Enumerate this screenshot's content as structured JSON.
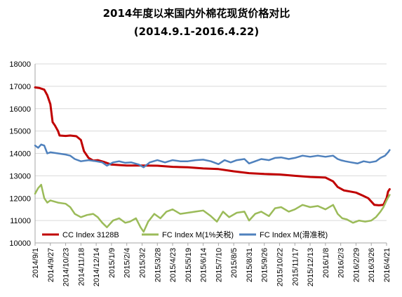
{
  "chart_data": {
    "type": "line",
    "title": "2014年度以来国内外棉花现货价格对比",
    "subtitle": "(2014.9.1-2016.4.22)",
    "xlabel": "",
    "ylabel": "",
    "ylim": [
      10000,
      18000
    ],
    "yticks": [
      10000,
      11000,
      12000,
      13000,
      14000,
      15000,
      16000,
      17000,
      18000
    ],
    "x_tick_labels": [
      "2014/9/1",
      "2014/9/27",
      "2014/10/23",
      "2014/11/18",
      "2014/12/14",
      "2015/1/9",
      "2015/2/4",
      "2015/3/2",
      "2015/3/28",
      "2015/4/23",
      "2015/5/19",
      "2015/6/14",
      "2015/7/10",
      "2015/8/5",
      "2015/8/31",
      "2015/9/26",
      "2015/10/22",
      "2015/11/17",
      "2015/12/13",
      "2016/1/8",
      "2016/2/3",
      "2016/2/29",
      "2016/3/26",
      "2016/4/21"
    ],
    "grid": "horizontal",
    "legend_position": "bottom",
    "series": [
      {
        "name": "CC Index 3128B",
        "color": "#c00000",
        "points": [
          [
            0,
            16950
          ],
          [
            0.3,
            16920
          ],
          [
            0.6,
            16850
          ],
          [
            0.8,
            16600
          ],
          [
            1.0,
            16200
          ],
          [
            1.15,
            15400
          ],
          [
            1.3,
            15250
          ],
          [
            1.5,
            15000
          ],
          [
            1.6,
            14800
          ],
          [
            2.0,
            14780
          ],
          [
            2.3,
            14800
          ],
          [
            2.7,
            14770
          ],
          [
            3.0,
            14600
          ],
          [
            3.2,
            14100
          ],
          [
            3.5,
            13800
          ],
          [
            3.8,
            13680
          ],
          [
            4.1,
            13700
          ],
          [
            4.5,
            13620
          ],
          [
            5.0,
            13500
          ],
          [
            6.0,
            13460
          ],
          [
            7.0,
            13460
          ],
          [
            8.0,
            13450
          ],
          [
            9.0,
            13400
          ],
          [
            10.0,
            13380
          ],
          [
            11.0,
            13330
          ],
          [
            12.0,
            13300
          ],
          [
            13.0,
            13200
          ],
          [
            14.0,
            13120
          ],
          [
            15.0,
            13080
          ],
          [
            16.0,
            13060
          ],
          [
            17.0,
            13000
          ],
          [
            18.0,
            12950
          ],
          [
            19.0,
            12920
          ],
          [
            19.5,
            12750
          ],
          [
            19.8,
            12500
          ],
          [
            20.2,
            12350
          ],
          [
            20.6,
            12300
          ],
          [
            21.0,
            12250
          ],
          [
            21.4,
            12130
          ],
          [
            21.8,
            12000
          ],
          [
            22.0,
            11850
          ],
          [
            22.2,
            11700
          ],
          [
            22.5,
            11680
          ],
          [
            22.8,
            11700
          ],
          [
            23.0,
            12000
          ],
          [
            23.1,
            12300
          ],
          [
            23.2,
            12400
          ]
        ]
      },
      {
        "name": "FC Index M(1%关税)",
        "color": "#9bbb59",
        "points": [
          [
            0,
            12200
          ],
          [
            0.2,
            12450
          ],
          [
            0.4,
            12600
          ],
          [
            0.6,
            12000
          ],
          [
            0.8,
            11800
          ],
          [
            1.0,
            11900
          ],
          [
            1.5,
            11800
          ],
          [
            2.0,
            11750
          ],
          [
            2.3,
            11600
          ],
          [
            2.6,
            11300
          ],
          [
            3.0,
            11150
          ],
          [
            3.4,
            11250
          ],
          [
            3.8,
            11300
          ],
          [
            4.1,
            11150
          ],
          [
            4.4,
            10900
          ],
          [
            4.7,
            10700
          ],
          [
            5.1,
            11000
          ],
          [
            5.5,
            11100
          ],
          [
            5.9,
            10900
          ],
          [
            6.2,
            10950
          ],
          [
            6.6,
            11100
          ],
          [
            6.9,
            10700
          ],
          [
            7.1,
            10500
          ],
          [
            7.4,
            10950
          ],
          [
            7.8,
            11300
          ],
          [
            8.2,
            11100
          ],
          [
            8.6,
            11400
          ],
          [
            9.0,
            11500
          ],
          [
            9.5,
            11300
          ],
          [
            10.0,
            11350
          ],
          [
            10.5,
            11400
          ],
          [
            11.0,
            11450
          ],
          [
            11.5,
            11200
          ],
          [
            11.9,
            10950
          ],
          [
            12.3,
            11400
          ],
          [
            12.7,
            11150
          ],
          [
            13.2,
            11350
          ],
          [
            13.7,
            11400
          ],
          [
            14.0,
            11000
          ],
          [
            14.4,
            11300
          ],
          [
            14.8,
            11400
          ],
          [
            15.3,
            11200
          ],
          [
            15.7,
            11550
          ],
          [
            16.1,
            11600
          ],
          [
            16.6,
            11400
          ],
          [
            17.0,
            11500
          ],
          [
            17.5,
            11700
          ],
          [
            18.0,
            11600
          ],
          [
            18.5,
            11650
          ],
          [
            19.0,
            11500
          ],
          [
            19.5,
            11700
          ],
          [
            19.8,
            11300
          ],
          [
            20.1,
            11100
          ],
          [
            20.4,
            11050
          ],
          [
            20.8,
            10900
          ],
          [
            21.2,
            11000
          ],
          [
            21.6,
            10950
          ],
          [
            22.0,
            11000
          ],
          [
            22.3,
            11150
          ],
          [
            22.6,
            11400
          ],
          [
            22.8,
            11600
          ],
          [
            23.0,
            11900
          ],
          [
            23.2,
            12150
          ]
        ]
      },
      {
        "name": "FC Index M(滑准税)",
        "color": "#4f81bd",
        "points": [
          [
            0,
            14350
          ],
          [
            0.2,
            14250
          ],
          [
            0.4,
            14400
          ],
          [
            0.6,
            14350
          ],
          [
            0.8,
            14000
          ],
          [
            1.0,
            14050
          ],
          [
            1.5,
            14000
          ],
          [
            2.0,
            13950
          ],
          [
            2.3,
            13900
          ],
          [
            2.6,
            13750
          ],
          [
            3.0,
            13650
          ],
          [
            3.5,
            13700
          ],
          [
            4.0,
            13650
          ],
          [
            4.4,
            13600
          ],
          [
            4.7,
            13450
          ],
          [
            5.1,
            13600
          ],
          [
            5.5,
            13650
          ],
          [
            5.9,
            13580
          ],
          [
            6.3,
            13600
          ],
          [
            6.8,
            13500
          ],
          [
            7.1,
            13380
          ],
          [
            7.5,
            13600
          ],
          [
            8.0,
            13700
          ],
          [
            8.5,
            13600
          ],
          [
            9.0,
            13700
          ],
          [
            9.5,
            13650
          ],
          [
            10.0,
            13650
          ],
          [
            10.5,
            13700
          ],
          [
            11.0,
            13720
          ],
          [
            11.5,
            13650
          ],
          [
            12.0,
            13520
          ],
          [
            12.4,
            13700
          ],
          [
            12.8,
            13600
          ],
          [
            13.2,
            13700
          ],
          [
            13.7,
            13750
          ],
          [
            14.0,
            13550
          ],
          [
            14.4,
            13650
          ],
          [
            14.8,
            13750
          ],
          [
            15.3,
            13700
          ],
          [
            15.7,
            13800
          ],
          [
            16.1,
            13820
          ],
          [
            16.6,
            13750
          ],
          [
            17.0,
            13800
          ],
          [
            17.5,
            13900
          ],
          [
            18.0,
            13850
          ],
          [
            18.5,
            13900
          ],
          [
            19.0,
            13850
          ],
          [
            19.5,
            13900
          ],
          [
            19.8,
            13750
          ],
          [
            20.0,
            13700
          ],
          [
            20.3,
            13650
          ],
          [
            20.7,
            13600
          ],
          [
            21.1,
            13550
          ],
          [
            21.5,
            13650
          ],
          [
            21.9,
            13600
          ],
          [
            22.3,
            13650
          ],
          [
            22.6,
            13800
          ],
          [
            22.9,
            13900
          ],
          [
            23.1,
            14050
          ],
          [
            23.2,
            14150
          ]
        ]
      }
    ]
  }
}
